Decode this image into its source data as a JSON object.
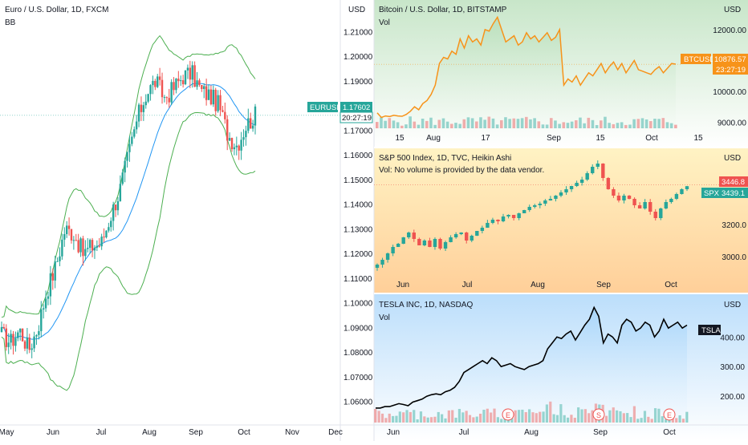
{
  "colors": {
    "up": "#26a69a",
    "down": "#ef5350",
    "bb_band": "#4caf50",
    "bb_basis": "#2196f3",
    "btc_line": "#f7931a",
    "tsla_line": "#000000",
    "eur_tag": "#26a69a",
    "btc_tag": "#f7931a",
    "spx_tag_up": "#26a69a",
    "spx_tag_down": "#ef5350"
  },
  "eurusd": {
    "title": "Euro / U.S. Dollar, 1D, FXCM",
    "indicator": "BB",
    "axis_unit": "USD",
    "price_tag": "EURUSD",
    "price_value": "1.17602",
    "countdown": "20:27:19",
    "y_ticks": [
      "1.21000",
      "1.20000",
      "1.19000",
      "1.18000",
      "1.17000",
      "1.16000",
      "1.15000",
      "1.14000",
      "1.13000",
      "1.12000",
      "1.11000",
      "1.10000",
      "1.09000",
      "1.08000",
      "1.07000",
      "1.06000"
    ],
    "x_ticks": [
      "May",
      "Jun",
      "Jul",
      "Aug",
      "Sep",
      "Oct",
      "Nov",
      "Dec"
    ]
  },
  "btcusd": {
    "title": "Bitcoin / U.S. Dollar, 1D, BITSTAMP",
    "volume_label": "Vol",
    "axis_unit": "USD",
    "price_tag": "BTCUSD",
    "price_value": "10876.57",
    "countdown": "23:27:19",
    "y_ticks": [
      "12000.00",
      "11000.00",
      "10000.00",
      "9000.00"
    ],
    "x_ticks": [
      "15",
      "Aug",
      "17",
      "Sep",
      "15",
      "Oct",
      "15"
    ]
  },
  "spx": {
    "title": "S&P 500 Index, 1D, TVC, Heikin Ashi",
    "volume_note": "Vol: No volume is provided by the data vendor.",
    "axis_unit": "USD",
    "price_tag": "SPX",
    "price_value": "3439.1",
    "price_value_2": "3446.8",
    "y_ticks": [
      "3200.0",
      "3000.0"
    ],
    "x_ticks": [
      "Jun",
      "Jul",
      "Aug",
      "Sep",
      "Oct"
    ]
  },
  "tsla": {
    "title": "TESLA INC, 1D, NASDAQ",
    "volume_label": "Vol",
    "axis_unit": "USD",
    "price_tag": "TSLA",
    "y_ticks": [
      "400.00",
      "300.00",
      "200.00"
    ],
    "x_ticks": [
      "Jun",
      "Jul",
      "Aug",
      "Sep",
      "Oct"
    ],
    "event_markers": [
      "E",
      "S",
      "E"
    ]
  },
  "chart_data": [
    {
      "type": "candlestick",
      "title": "Euro / U.S. Dollar, 1D, FXCM",
      "ylim": [
        1.055,
        1.215
      ],
      "last": 1.17602,
      "close_path": [
        [
          "May",
          1.087
        ],
        [
          "May",
          1.084
        ],
        [
          "May",
          1.089
        ],
        [
          "May",
          1.081
        ],
        [
          "Jun",
          1.09
        ],
        [
          "Jun",
          1.105
        ],
        [
          "Jun",
          1.115
        ],
        [
          "Jun",
          1.13
        ],
        [
          "Jun",
          1.128
        ],
        [
          "Jun",
          1.12
        ],
        [
          "Jun",
          1.123
        ],
        [
          "Jul",
          1.124
        ],
        [
          "Jul",
          1.135
        ],
        [
          "Jul",
          1.145
        ],
        [
          "Jul",
          1.16
        ],
        [
          "Jul",
          1.175
        ],
        [
          "Aug",
          1.185
        ],
        [
          "Aug",
          1.19
        ],
        [
          "Aug",
          1.183
        ],
        [
          "Aug",
          1.187
        ],
        [
          "Aug",
          1.192
        ],
        [
          "Sep",
          1.193
        ],
        [
          "Sep",
          1.186
        ],
        [
          "Sep",
          1.184
        ],
        [
          "Sep",
          1.18
        ],
        [
          "Sep",
          1.168
        ],
        [
          "Oct",
          1.164
        ],
        [
          "Oct",
          1.172
        ],
        [
          "Oct",
          1.176
        ]
      ]
    },
    {
      "type": "line",
      "title": "Bitcoin / U.S. Dollar, 1D, BITSTAMP",
      "ylim": [
        8800,
        12700
      ],
      "last": 10876.57,
      "values": [
        9300,
        9150,
        9200,
        9180,
        9220,
        9200,
        9190,
        9250,
        9350,
        9500,
        9400,
        9600,
        9700,
        9900,
        10200,
        10900,
        11100,
        11050,
        11300,
        11200,
        11700,
        11400,
        11800,
        11600,
        11700,
        11500,
        12000,
        11950,
        12200,
        12400,
        12000,
        11600,
        11700,
        11800,
        11500,
        11600,
        11900,
        11700,
        11800,
        11600,
        11750,
        11900,
        11650,
        11750,
        12000,
        10200,
        10400,
        10300,
        10500,
        10200,
        10400,
        10600,
        10500,
        10700,
        10900,
        10600,
        10800,
        10950,
        10700,
        10900,
        10600,
        10800,
        11000,
        10700,
        10650,
        10600,
        10550,
        10700,
        10800,
        10600,
        10750,
        10900,
        10880
      ]
    },
    {
      "type": "candlestick",
      "title": "S&P 500 Index, 1D, TVC, Heikin Ashi",
      "ylim": [
        2850,
        3650
      ],
      "last": 3439.1,
      "close_path": [
        2950,
        2980,
        3020,
        3060,
        3080,
        3120,
        3150,
        3110,
        3070,
        3100,
        3060,
        3110,
        3050,
        3090,
        3120,
        3140,
        3150,
        3100,
        3130,
        3160,
        3180,
        3210,
        3230,
        3220,
        3250,
        3260,
        3240,
        3270,
        3290,
        3310,
        3320,
        3330,
        3350,
        3360,
        3380,
        3400,
        3420,
        3440,
        3460,
        3480,
        3520,
        3560,
        3580,
        3490,
        3420,
        3380,
        3350,
        3380,
        3360,
        3320,
        3300,
        3340,
        3280,
        3240,
        3300,
        3340,
        3360,
        3390,
        3420,
        3439
      ]
    },
    {
      "type": "line",
      "title": "TESLA INC, 1D, NASDAQ",
      "ylim": [
        130,
        520
      ],
      "values": [
        160,
        160,
        165,
        165,
        170,
        175,
        172,
        168,
        180,
        185,
        190,
        200,
        205,
        208,
        205,
        215,
        220,
        230,
        250,
        280,
        290,
        300,
        310,
        320,
        310,
        330,
        320,
        300,
        305,
        310,
        300,
        295,
        290,
        300,
        305,
        310,
        320,
        360,
        380,
        400,
        395,
        410,
        420,
        390,
        415,
        440,
        460,
        500,
        470,
        380,
        410,
        400,
        380,
        440,
        460,
        450,
        420,
        430,
        450,
        440,
        400,
        420,
        460,
        430,
        440,
        450,
        430,
        440
      ]
    }
  ]
}
